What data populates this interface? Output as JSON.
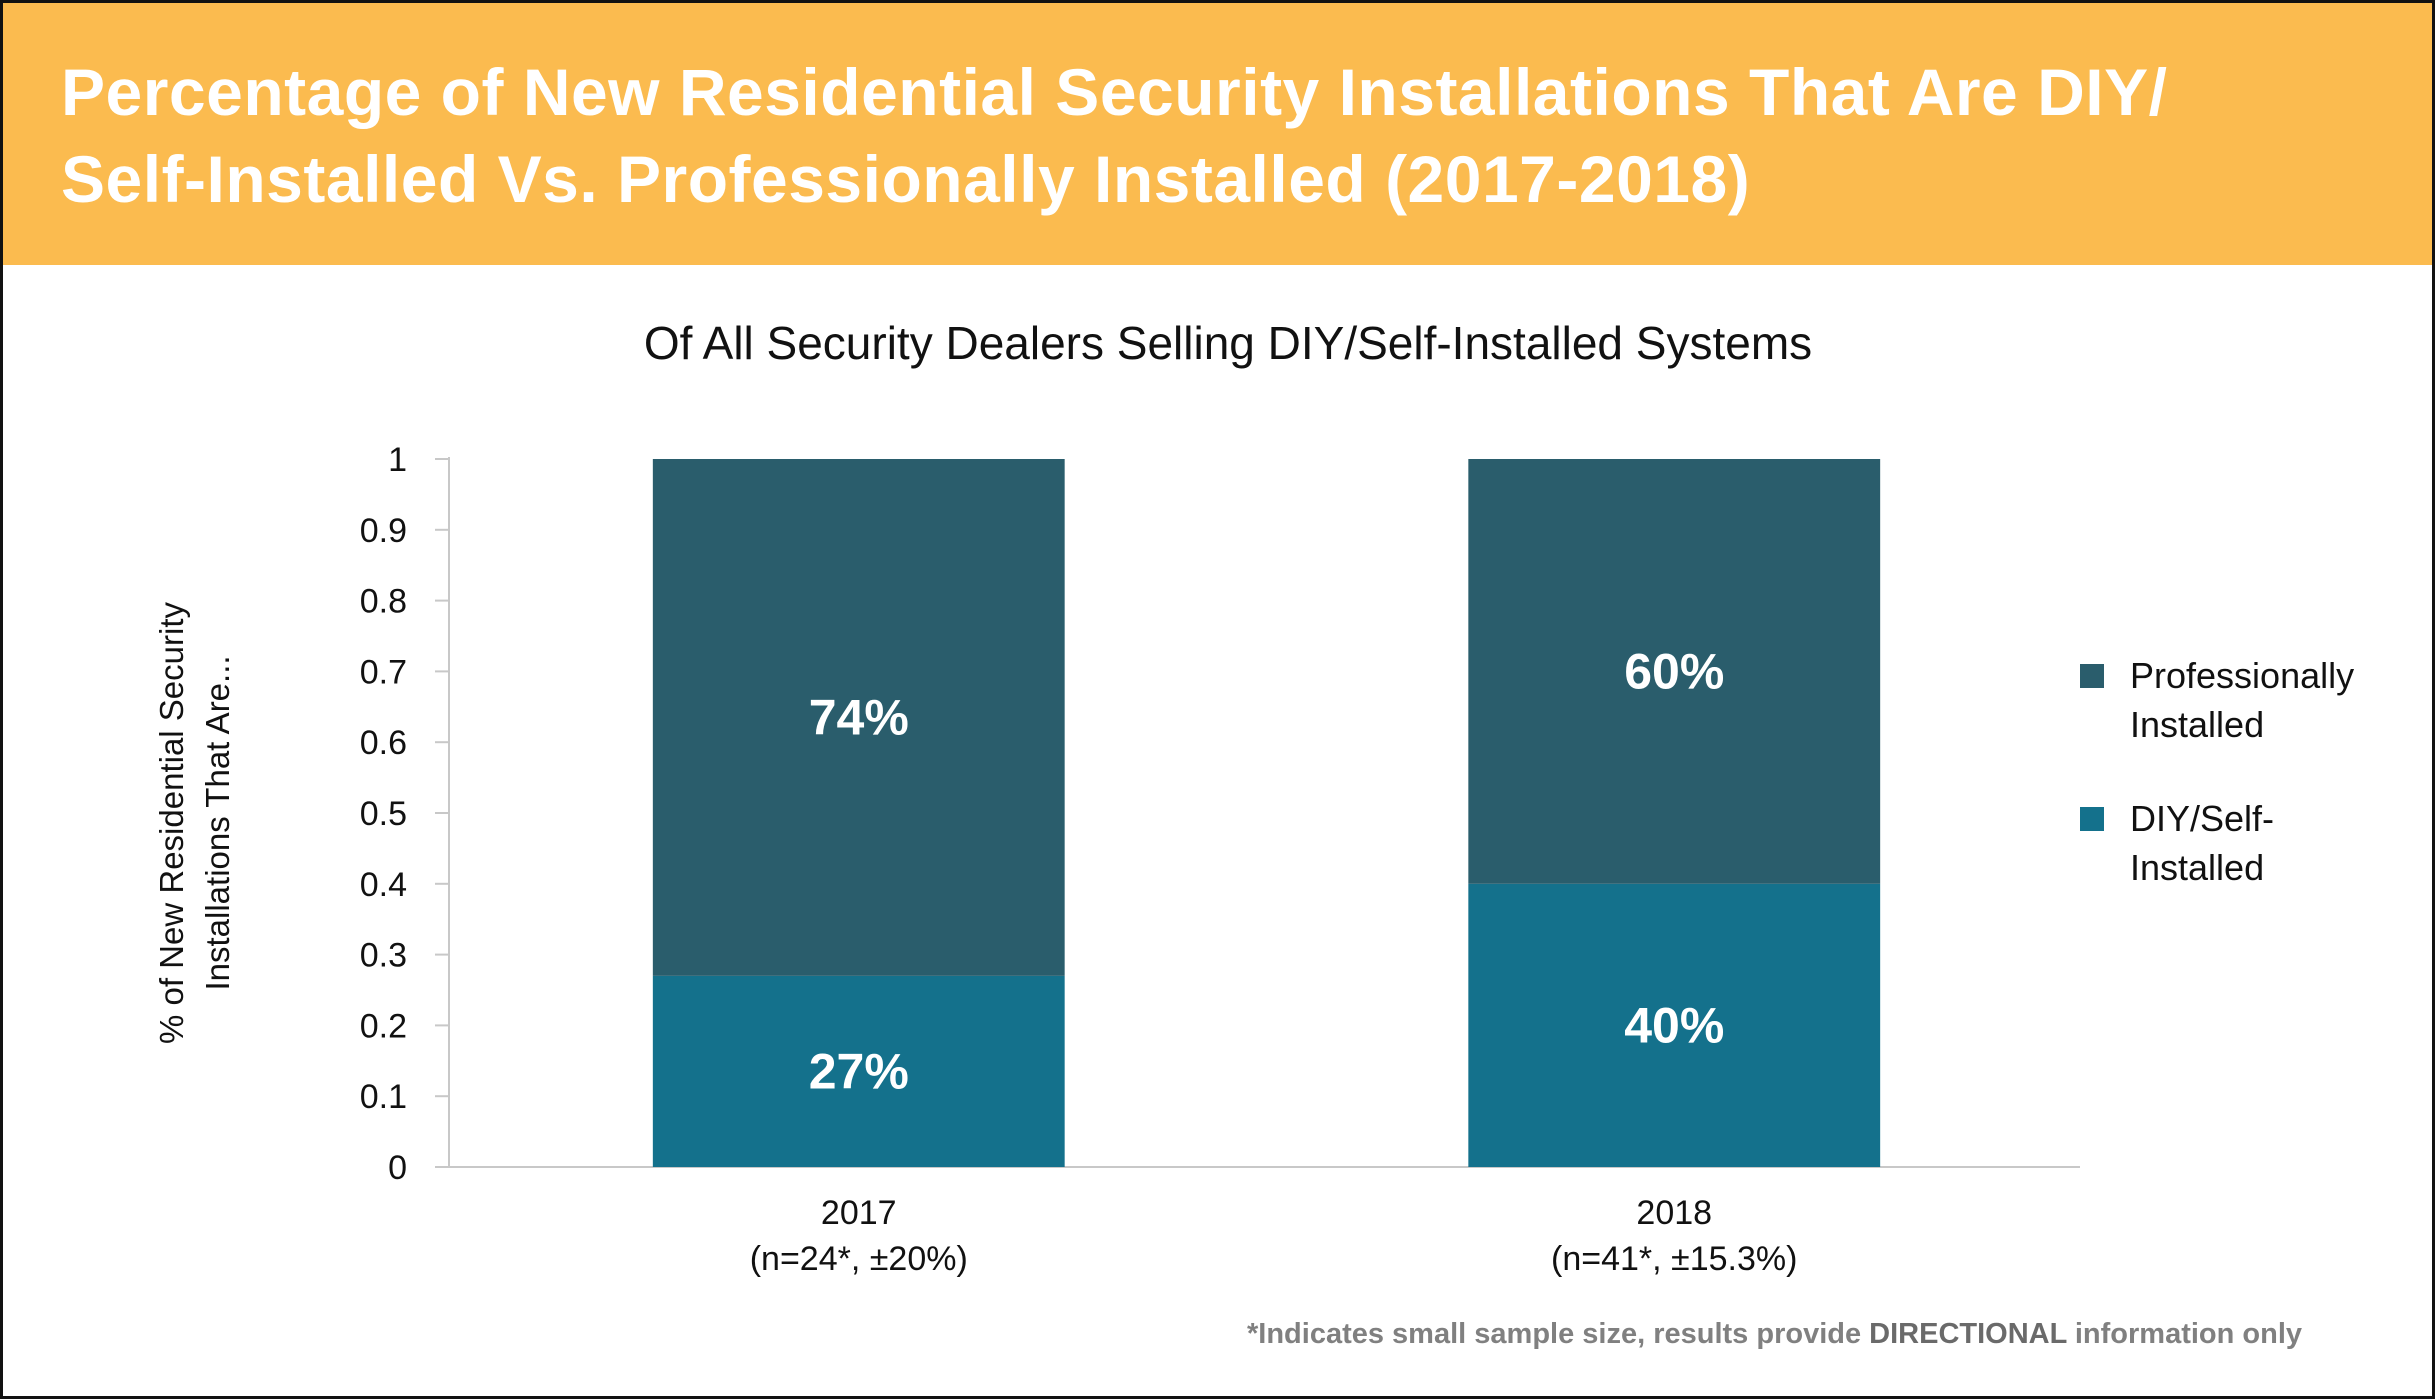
{
  "banner": {
    "title_line1": "Percentage of New Residential Security Installations That Are DIY/",
    "title_line2": "Self-Installed Vs. Professionally Installed (2017-2018)",
    "background": "#fbbb4f"
  },
  "chart_data": {
    "type": "bar",
    "stacked": true,
    "title": "Of All Security Dealers Selling DIY/Self-Installed Systems",
    "ylabel_line1": "% of New Residential Security",
    "ylabel_line2": "Installations That Are...",
    "xlabel": "",
    "ylim": [
      0,
      1
    ],
    "yticks": [
      "0",
      "0.1",
      "0.2",
      "0.3",
      "0.4",
      "0.5",
      "0.6",
      "0.7",
      "0.8",
      "0.9",
      "1"
    ],
    "grid": false,
    "legend_position": "right",
    "categories": [
      "2017",
      "2018"
    ],
    "category_sublabels": [
      "(n=24*, ±20%)",
      "(n=41*, ±15.3%)"
    ],
    "series": [
      {
        "name": "DIY/Self-Installed",
        "legend_line1": "DIY/Self-",
        "legend_line2": "Installed",
        "color": "#14718c",
        "values": [
          0.27,
          0.4
        ],
        "labels": [
          "27%",
          "40%"
        ]
      },
      {
        "name": "Professionally Installed",
        "legend_line1": "Professionally",
        "legend_line2": "Installed",
        "color": "#2a5d6c",
        "values": [
          0.74,
          0.6
        ],
        "labels": [
          "74%",
          "60%"
        ]
      }
    ]
  },
  "footnote": {
    "prefix": "*Indicates small sample size, results provide ",
    "emphasis": "DIRECTIONAL",
    "suffix": " information only"
  }
}
